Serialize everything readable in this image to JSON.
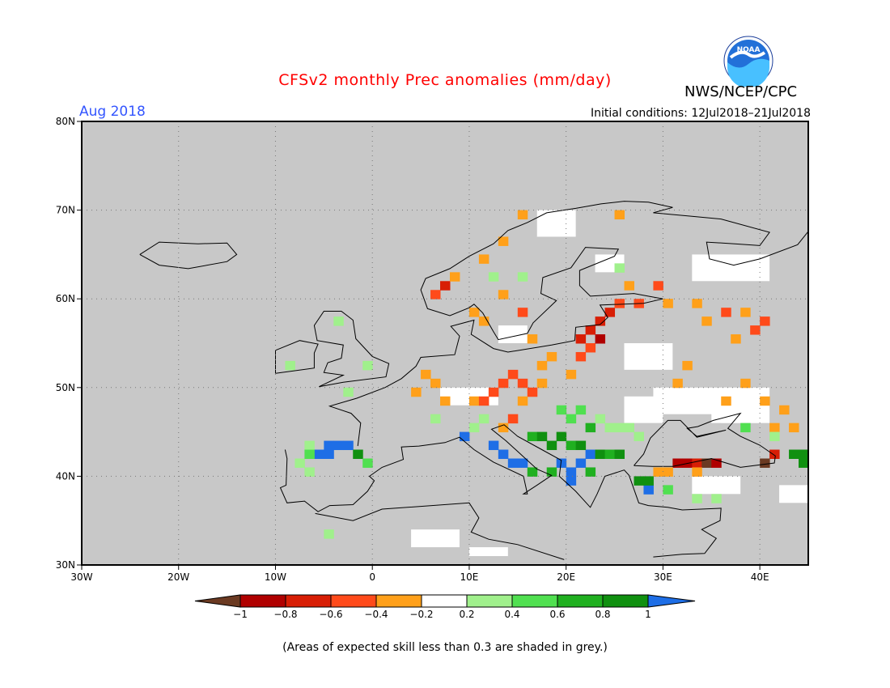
{
  "title": "CFSv2 monthly Prec anomalies (mm/day)",
  "agency": "NWS/NCEP/CPC",
  "logo_text": "NOAA",
  "forecast_month": "Aug 2018",
  "initial_conditions": "Initial conditions: 12Jul2018–21Jul2018",
  "footnote": "(Areas of expected skill less than 0.3 are shaded in grey.)",
  "colors": {
    "title": "#ff0000",
    "period": "#3355ff",
    "skill_mask_grey": "#c8c8c8"
  },
  "map": {
    "lon_range": [
      -30,
      45
    ],
    "lat_range": [
      30,
      80
    ],
    "lat_labels": [
      "80N",
      "70N",
      "60N",
      "50N",
      "40N",
      "30N"
    ],
    "lon_labels": [
      "30W",
      "20W",
      "10W",
      "0",
      "10E",
      "20E",
      "30E",
      "40E"
    ]
  },
  "colorbar": {
    "labels": [
      "−1",
      "−0.8",
      "−0.6",
      "−0.4",
      "−0.2",
      "0.2",
      "0.4",
      "0.6",
      "0.8",
      "1"
    ],
    "classes": [
      {
        "range": "< -1",
        "color": "#6b3a22"
      },
      {
        "range": "-1 to -0.8",
        "color": "#b00000"
      },
      {
        "range": "-0.8 to -0.6",
        "color": "#d81e05"
      },
      {
        "range": "-0.6 to -0.4",
        "color": "#ff4a1a"
      },
      {
        "range": "-0.4 to -0.2",
        "color": "#ffa01a"
      },
      {
        "range": "-0.2 to 0.2",
        "color": "#ffffff"
      },
      {
        "range": "0.2 to 0.4",
        "color": "#a0f08c"
      },
      {
        "range": "0.4 to 0.6",
        "color": "#50e050"
      },
      {
        "range": "0.6 to 0.8",
        "color": "#20b020"
      },
      {
        "range": "0.8 to 1",
        "color": "#109010"
      },
      {
        "range": "> 1",
        "color": "#1e6ee6"
      }
    ]
  },
  "anomaly_cells": [
    {
      "lon": -4,
      "lat": 57,
      "cls": 6
    },
    {
      "lon": -9,
      "lat": 52,
      "cls": 6
    },
    {
      "lon": -1,
      "lat": 52,
      "cls": 6
    },
    {
      "lon": -3,
      "lat": 49,
      "cls": 6
    },
    {
      "lon": -7,
      "lat": 43,
      "cls": 6
    },
    {
      "lon": -8,
      "lat": 41,
      "cls": 6
    },
    {
      "lon": -5,
      "lat": 43,
      "cls": 10
    },
    {
      "lon": -4,
      "lat": 43,
      "cls": 10
    },
    {
      "lon": -3,
      "lat": 43,
      "cls": 10
    },
    {
      "lon": -6,
      "lat": 42,
      "cls": 10
    },
    {
      "lon": -5,
      "lat": 42,
      "cls": 10
    },
    {
      "lon": -2,
      "lat": 42,
      "cls": 9
    },
    {
      "lon": -7,
      "lat": 42,
      "cls": 7
    },
    {
      "lon": -1,
      "lat": 41,
      "cls": 7
    },
    {
      "lon": -7,
      "lat": 40,
      "cls": 6
    },
    {
      "lon": 5,
      "lat": 51,
      "cls": 4
    },
    {
      "lon": 6,
      "lat": 50,
      "cls": 4
    },
    {
      "lon": 4,
      "lat": 49,
      "cls": 4
    },
    {
      "lon": 7,
      "lat": 48,
      "cls": 4
    },
    {
      "lon": 10,
      "lat": 48,
      "cls": 4
    },
    {
      "lon": 11,
      "lat": 48,
      "cls": 3
    },
    {
      "lon": 12,
      "lat": 49,
      "cls": 3
    },
    {
      "lon": 13,
      "lat": 50,
      "cls": 3
    },
    {
      "lon": 14,
      "lat": 51,
      "cls": 3
    },
    {
      "lon": 15,
      "lat": 50,
      "cls": 3
    },
    {
      "lon": 16,
      "lat": 49,
      "cls": 3
    },
    {
      "lon": 17,
      "lat": 50,
      "cls": 4
    },
    {
      "lon": 15,
      "lat": 48,
      "cls": 4
    },
    {
      "lon": 14,
      "lat": 46,
      "cls": 3
    },
    {
      "lon": 13,
      "lat": 45,
      "cls": 4
    },
    {
      "lon": 18,
      "lat": 53,
      "cls": 4
    },
    {
      "lon": 17,
      "lat": 52,
      "cls": 4
    },
    {
      "lon": 20,
      "lat": 51,
      "cls": 4
    },
    {
      "lon": 21,
      "lat": 55,
      "cls": 2
    },
    {
      "lon": 22,
      "lat": 56,
      "cls": 2
    },
    {
      "lon": 23,
      "lat": 57,
      "cls": 2
    },
    {
      "lon": 24,
      "lat": 58,
      "cls": 2
    },
    {
      "lon": 22,
      "lat": 54,
      "cls": 3
    },
    {
      "lon": 23,
      "lat": 55,
      "cls": 1
    },
    {
      "lon": 21,
      "lat": 53,
      "cls": 3
    },
    {
      "lon": 25,
      "lat": 59,
      "cls": 3
    },
    {
      "lon": 27,
      "lat": 59,
      "cls": 3
    },
    {
      "lon": 30,
      "lat": 59,
      "cls": 4
    },
    {
      "lon": 33,
      "lat": 59,
      "cls": 4
    },
    {
      "lon": 36,
      "lat": 58,
      "cls": 3
    },
    {
      "lon": 38,
      "lat": 58,
      "cls": 4
    },
    {
      "lon": 40,
      "lat": 57,
      "cls": 3
    },
    {
      "lon": 39,
      "lat": 56,
      "cls": 3
    },
    {
      "lon": 37,
      "lat": 55,
      "cls": 4
    },
    {
      "lon": 34,
      "lat": 57,
      "cls": 4
    },
    {
      "lon": 29,
      "lat": 61,
      "cls": 3
    },
    {
      "lon": 26,
      "lat": 61,
      "cls": 4
    },
    {
      "lon": 6,
      "lat": 60,
      "cls": 3
    },
    {
      "lon": 7,
      "lat": 61,
      "cls": 2
    },
    {
      "lon": 8,
      "lat": 62,
      "cls": 4
    },
    {
      "lon": 10,
      "lat": 58,
      "cls": 4
    },
    {
      "lon": 11,
      "lat": 57,
      "cls": 4
    },
    {
      "lon": 13,
      "lat": 60,
      "cls": 4
    },
    {
      "lon": 15,
      "lat": 58,
      "cls": 3
    },
    {
      "lon": 11,
      "lat": 64,
      "cls": 4
    },
    {
      "lon": 13,
      "lat": 66,
      "cls": 4
    },
    {
      "lon": 15,
      "lat": 69,
      "cls": 4
    },
    {
      "lon": 16,
      "lat": 55,
      "cls": 4
    },
    {
      "lon": 25,
      "lat": 69,
      "cls": 4
    },
    {
      "lon": 15,
      "lat": 62,
      "cls": 6
    },
    {
      "lon": 38,
      "lat": 50,
      "cls": 4
    },
    {
      "lon": 40,
      "lat": 48,
      "cls": 4
    },
    {
      "lon": 42,
      "lat": 47,
      "cls": 4
    },
    {
      "lon": 43,
      "lat": 45,
      "cls": 4
    },
    {
      "lon": 41,
      "lat": 45,
      "cls": 4
    },
    {
      "lon": 36,
      "lat": 48,
      "cls": 4
    },
    {
      "lon": 32,
      "lat": 52,
      "cls": 4
    },
    {
      "lon": 31,
      "lat": 50,
      "cls": 4
    },
    {
      "lon": 31,
      "lat": 41,
      "cls": 1
    },
    {
      "lon": 32,
      "lat": 41,
      "cls": 1
    },
    {
      "lon": 33,
      "lat": 41,
      "cls": 2
    },
    {
      "lon": 34,
      "lat": 41,
      "cls": 0
    },
    {
      "lon": 35,
      "lat": 41,
      "cls": 1
    },
    {
      "lon": 41,
      "lat": 42,
      "cls": 2
    },
    {
      "lon": 40,
      "lat": 41,
      "cls": 0
    },
    {
      "lon": 29,
      "lat": 40,
      "cls": 4
    },
    {
      "lon": 30,
      "lat": 40,
      "cls": 4
    },
    {
      "lon": 33,
      "lat": 40,
      "cls": 4
    },
    {
      "lon": 12,
      "lat": 43,
      "cls": 10
    },
    {
      "lon": 13,
      "lat": 42,
      "cls": 10
    },
    {
      "lon": 14,
      "lat": 41,
      "cls": 10
    },
    {
      "lon": 15,
      "lat": 41,
      "cls": 10
    },
    {
      "lon": 9,
      "lat": 44,
      "cls": 10
    },
    {
      "lon": 19,
      "lat": 41,
      "cls": 10
    },
    {
      "lon": 20,
      "lat": 40,
      "cls": 10
    },
    {
      "lon": 21,
      "lat": 41,
      "cls": 10
    },
    {
      "lon": 20,
      "lat": 39,
      "cls": 10
    },
    {
      "lon": 28,
      "lat": 38,
      "cls": 10
    },
    {
      "lon": 22,
      "lat": 42,
      "cls": 10
    },
    {
      "lon": 16,
      "lat": 44,
      "cls": 8
    },
    {
      "lon": 17,
      "lat": 44,
      "cls": 9
    },
    {
      "lon": 18,
      "lat": 43,
      "cls": 9
    },
    {
      "lon": 19,
      "lat": 44,
      "cls": 9
    },
    {
      "lon": 20,
      "lat": 43,
      "cls": 8
    },
    {
      "lon": 21,
      "lat": 43,
      "cls": 9
    },
    {
      "lon": 22,
      "lat": 45,
      "cls": 8
    },
    {
      "lon": 23,
      "lat": 42,
      "cls": 9
    },
    {
      "lon": 24,
      "lat": 42,
      "cls": 8
    },
    {
      "lon": 25,
      "lat": 42,
      "cls": 9
    },
    {
      "lon": 16,
      "lat": 40,
      "cls": 8
    },
    {
      "lon": 18,
      "lat": 40,
      "cls": 8
    },
    {
      "lon": 22,
      "lat": 40,
      "cls": 8
    },
    {
      "lon": 27,
      "lat": 39,
      "cls": 9
    },
    {
      "lon": 28,
      "lat": 39,
      "cls": 9
    },
    {
      "lon": 44,
      "lat": 42,
      "cls": 9
    },
    {
      "lon": 44,
      "lat": 41,
      "cls": 9
    },
    {
      "lon": 43,
      "lat": 42,
      "cls": 9
    },
    {
      "lon": 20,
      "lat": 46,
      "cls": 7
    },
    {
      "lon": 21,
      "lat": 47,
      "cls": 7
    },
    {
      "lon": 19,
      "lat": 47,
      "cls": 7
    },
    {
      "lon": 23,
      "lat": 46,
      "cls": 6
    },
    {
      "lon": 24,
      "lat": 45,
      "cls": 6
    },
    {
      "lon": 25,
      "lat": 45,
      "cls": 6
    },
    {
      "lon": 26,
      "lat": 45,
      "cls": 6
    },
    {
      "lon": 27,
      "lat": 44,
      "cls": 6
    },
    {
      "lon": 30,
      "lat": 38,
      "cls": 7
    },
    {
      "lon": 33,
      "lat": 37,
      "cls": 6
    },
    {
      "lon": 35,
      "lat": 37,
      "cls": 6
    },
    {
      "lon": 38,
      "lat": 45,
      "cls": 7
    },
    {
      "lon": 41,
      "lat": 44,
      "cls": 6
    },
    {
      "lon": 11,
      "lat": 46,
      "cls": 6
    },
    {
      "lon": 10,
      "lat": 45,
      "cls": 6
    },
    {
      "lon": 6,
      "lat": 46,
      "cls": 6
    },
    {
      "lon": 12,
      "lat": 62,
      "cls": 6
    },
    {
      "lon": 25,
      "lat": 63,
      "cls": 6
    },
    {
      "lon": -5,
      "lat": 33,
      "cls": 6
    }
  ],
  "white_zones": [
    {
      "lon": 17,
      "lat": 67,
      "w": 4,
      "h": 3
    },
    {
      "lon": 23,
      "lat": 63,
      "w": 3,
      "h": 2
    },
    {
      "lon": 33,
      "lat": 62,
      "w": 8,
      "h": 3
    },
    {
      "lon": 26,
      "lat": 52,
      "w": 5,
      "h": 3
    },
    {
      "lon": 29,
      "lat": 47,
      "w": 8,
      "h": 3
    },
    {
      "lon": 36,
      "lat": 46,
      "w": 5,
      "h": 4
    },
    {
      "lon": 26,
      "lat": 46,
      "w": 4,
      "h": 3
    },
    {
      "lon": 7,
      "lat": 48,
      "w": 6,
      "h": 2
    },
    {
      "lon": 13,
      "lat": 55,
      "w": 3,
      "h": 2
    },
    {
      "lon": 4,
      "lat": 32,
      "w": 5,
      "h": 2
    },
    {
      "lon": 10,
      "lat": 31,
      "w": 4,
      "h": 1
    },
    {
      "lon": 33,
      "lat": 38,
      "w": 5,
      "h": 2
    },
    {
      "lon": 35,
      "lat": 46,
      "w": 5,
      "h": 3
    },
    {
      "lon": 42,
      "lat": 37,
      "w": 3,
      "h": 2
    }
  ]
}
